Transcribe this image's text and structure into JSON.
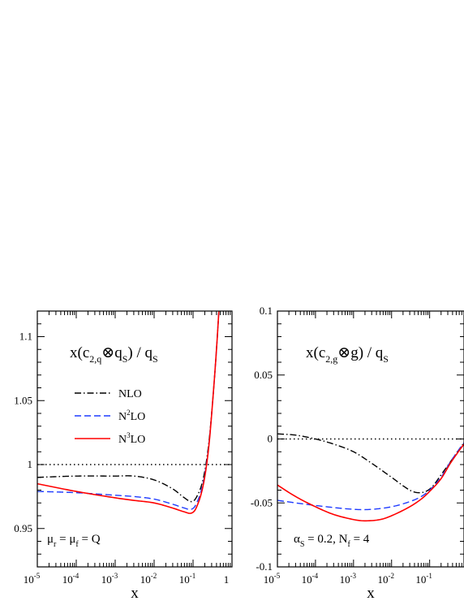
{
  "chart_data": [
    {
      "type": "line",
      "title": "x(c2,q⊗qS) / qS",
      "title_parts": {
        "x": "x(c",
        "sub1": "2,q",
        "otimes": "⊗",
        "q": "q",
        "sub2": "S",
        "tail": ") / q",
        "sub3": "S"
      },
      "xlabel": "x",
      "ylabel": "",
      "x_scale": "log",
      "xlim": [
        1e-05,
        1
      ],
      "ylim": [
        0.92,
        1.12
      ],
      "x_ticks": [
        {
          "v": 1e-05,
          "base": "10",
          "exp": "-5"
        },
        {
          "v": 0.0001,
          "base": "10",
          "exp": "-4"
        },
        {
          "v": 0.001,
          "base": "10",
          "exp": "-3"
        },
        {
          "v": 0.01,
          "base": "10",
          "exp": "-2"
        },
        {
          "v": 0.1,
          "base": "10",
          "exp": "-1"
        },
        {
          "v": 1,
          "base": "1",
          "exp": ""
        }
      ],
      "y_ticks": [
        0.95,
        1,
        1.05,
        1.1
      ],
      "y_tick_labels": [
        "0.95",
        "1",
        "1.05",
        "1.1"
      ],
      "reference_line": 1,
      "annotation": {
        "main": "μ",
        "s1": "r",
        "mid": " = μ",
        "s2": "f",
        "tail": " = Q"
      },
      "legend": {
        "placement": "middle-left",
        "entries": [
          {
            "pre": "NLO",
            "sup": "",
            "post": ""
          },
          {
            "pre": "N",
            "sup": "2",
            "post": "LO"
          },
          {
            "pre": "N",
            "sup": "3",
            "post": "LO"
          }
        ]
      },
      "series": [
        {
          "name": "NLO",
          "color": "#000000",
          "dash": "dashdot",
          "x": [
            1e-05,
            0.0001,
            0.001,
            0.003,
            0.01,
            0.03,
            0.06,
            0.09,
            0.12,
            0.18,
            0.25,
            0.32,
            0.4,
            0.46
          ],
          "y": [
            0.99,
            0.991,
            0.991,
            0.991,
            0.988,
            0.981,
            0.974,
            0.971,
            0.974,
            0.988,
            1.015,
            1.05,
            1.09,
            1.12
          ]
        },
        {
          "name": "N2LO",
          "color": "#1f3bff",
          "dash": "dashed",
          "x": [
            1e-05,
            0.0001,
            0.001,
            0.003,
            0.01,
            0.03,
            0.06,
            0.09,
            0.12,
            0.18,
            0.25,
            0.32,
            0.4,
            0.46
          ],
          "y": [
            0.979,
            0.978,
            0.976,
            0.975,
            0.973,
            0.969,
            0.966,
            0.965,
            0.969,
            0.985,
            1.013,
            1.05,
            1.09,
            1.12
          ]
        },
        {
          "name": "N3LO",
          "color": "#ff0000",
          "dash": "solid",
          "x": [
            1e-05,
            0.0001,
            0.001,
            0.003,
            0.01,
            0.03,
            0.06,
            0.09,
            0.12,
            0.18,
            0.25,
            0.32,
            0.4,
            0.46
          ],
          "y": [
            0.985,
            0.979,
            0.974,
            0.972,
            0.97,
            0.966,
            0.963,
            0.962,
            0.966,
            0.983,
            1.012,
            1.05,
            1.09,
            1.12
          ]
        }
      ]
    },
    {
      "type": "line",
      "title": "x(c2,g⊗g) / qS",
      "title_parts": {
        "x": "x(c",
        "sub1": "2,g",
        "otimes": "⊗",
        "q": "g",
        "sub2": "",
        "tail": ") / q",
        "sub3": "S"
      },
      "xlabel": "x",
      "ylabel": "",
      "x_scale": "log",
      "xlim": [
        1e-05,
        0.8
      ],
      "ylim": [
        -0.1,
        0.1
      ],
      "x_ticks": [
        {
          "v": 1e-05,
          "base": "10",
          "exp": "-5"
        },
        {
          "v": 0.0001,
          "base": "10",
          "exp": "-4"
        },
        {
          "v": 0.001,
          "base": "10",
          "exp": "-3"
        },
        {
          "v": 0.01,
          "base": "10",
          "exp": "-2"
        },
        {
          "v": 0.1,
          "base": "10",
          "exp": "-1"
        }
      ],
      "y_ticks": [
        -0.1,
        -0.05,
        0,
        0.05,
        0.1
      ],
      "y_tick_labels": [
        "-0.1",
        "-0.05",
        "0",
        "0.05",
        "0.1"
      ],
      "reference_line": 0,
      "annotation": {
        "main": "α",
        "s1": "S",
        "mid": " = 0.2, N",
        "s2": "f",
        "tail": " = 4"
      },
      "series": [
        {
          "name": "NLO",
          "color": "#000000",
          "dash": "dashdot",
          "x": [
            1e-05,
            3e-05,
            0.0001,
            0.0003,
            0.001,
            0.003,
            0.01,
            0.03,
            0.05,
            0.08,
            0.12,
            0.2,
            0.35,
            0.6,
            0.8
          ],
          "y": [
            0.004,
            0.003,
            0.0,
            -0.004,
            -0.01,
            -0.019,
            -0.03,
            -0.04,
            -0.042,
            -0.041,
            -0.037,
            -0.028,
            -0.018,
            -0.008,
            -0.003
          ]
        },
        {
          "name": "N2LO",
          "color": "#1f3bff",
          "dash": "dashed",
          "x": [
            1e-05,
            0.0001,
            0.001,
            0.003,
            0.01,
            0.03,
            0.06,
            0.1,
            0.2,
            0.35,
            0.6,
            0.8
          ],
          "y": [
            -0.048,
            -0.052,
            -0.055,
            -0.055,
            -0.053,
            -0.049,
            -0.045,
            -0.04,
            -0.03,
            -0.018,
            -0.008,
            -0.003
          ]
        },
        {
          "name": "N3LO",
          "color": "#ff0000",
          "dash": "solid",
          "x": [
            1e-05,
            3e-05,
            0.0001,
            0.0003,
            0.001,
            0.002,
            0.005,
            0.01,
            0.03,
            0.06,
            0.1,
            0.2,
            0.35,
            0.6,
            0.8
          ],
          "y": [
            -0.036,
            -0.045,
            -0.053,
            -0.059,
            -0.063,
            -0.064,
            -0.063,
            -0.06,
            -0.053,
            -0.047,
            -0.041,
            -0.031,
            -0.019,
            -0.009,
            -0.004
          ]
        }
      ]
    }
  ]
}
